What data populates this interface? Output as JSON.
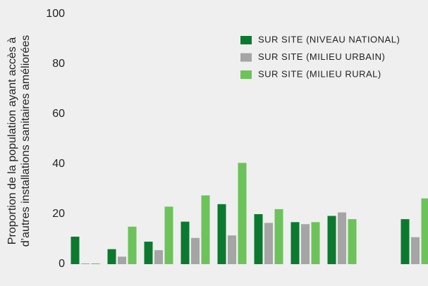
{
  "chart_data": {
    "type": "bar",
    "ylabel": [
      "Proportion de la population ayant accès à",
      "d’autres installations sanitaires améliorées"
    ],
    "categories": [
      null,
      null,
      null,
      null,
      null,
      null,
      null,
      null,
      null,
      null
    ],
    "series": [
      {
        "name": "SUR SITE (NIVEAU NATIONAL)",
        "color": "#0b7a2f",
        "values": [
          11,
          6,
          9,
          17,
          24,
          20,
          16.8,
          19.3,
          null,
          18
        ]
      },
      {
        "name": "SUR SITE (MILIEU URBAIN)",
        "color": "#a5a5a5",
        "values": [
          0.3,
          3,
          5.6,
          10.5,
          11.5,
          16.5,
          16,
          20.7,
          null,
          10.8
        ]
      },
      {
        "name": "SUR SITE (MILIEU RURAL)",
        "color": "#6cc35a",
        "values": [
          0.3,
          15,
          23,
          27.5,
          40.5,
          22,
          16.8,
          18,
          null,
          26.3
        ]
      }
    ],
    "ylim": [
      0,
      100
    ],
    "yticks": [
      0,
      20,
      40,
      60,
      80,
      100
    ],
    "grid": false
  }
}
